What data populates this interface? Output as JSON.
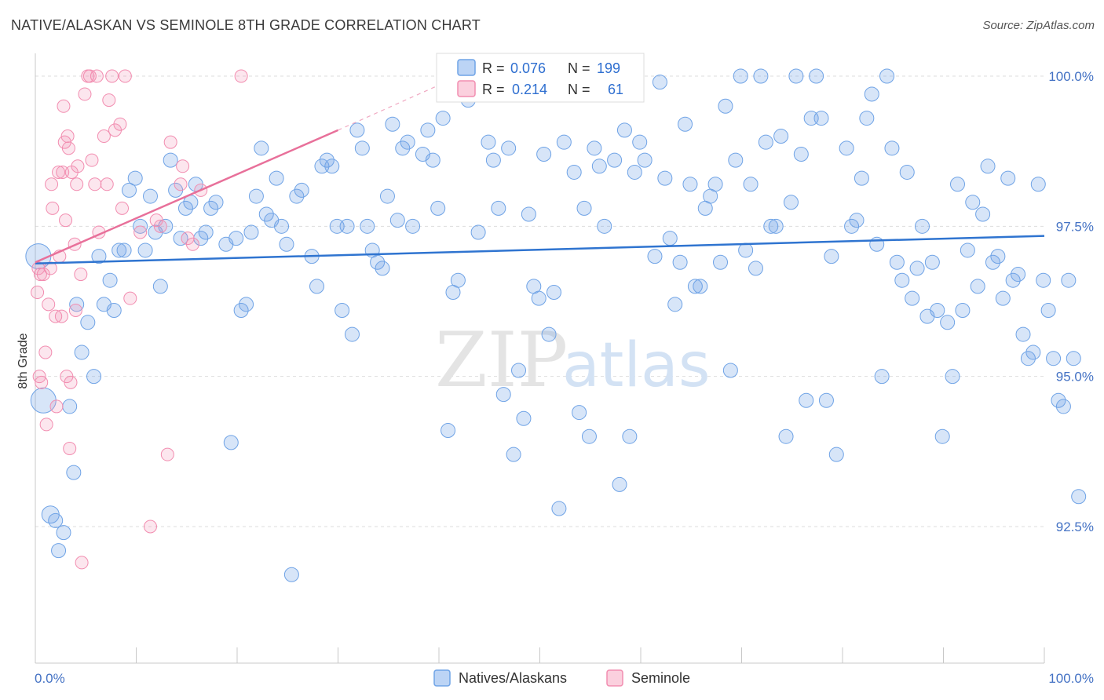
{
  "title": "NATIVE/ALASKAN VS SEMINOLE 8TH GRADE CORRELATION CHART",
  "source": "Source: ZipAtlas.com",
  "watermark": {
    "zip": "ZIP",
    "atlas": "atlas"
  },
  "stats_legend": [
    {
      "r_label": "R = ",
      "r_value": "0.076",
      "n_label": "N = ",
      "n_value": "199",
      "color": "#6fa3e6"
    },
    {
      "r_label": "R = ",
      "r_value": "0.214",
      "n_label": "N = ",
      "n_value": "61",
      "color": "#f28db0"
    }
  ],
  "chart_data": {
    "type": "scatter",
    "xlabel": "",
    "ylabel": "8th Grade",
    "xlim": [
      0,
      100
    ],
    "ylim": [
      89.0,
      100.3
    ],
    "x_tick_labels": [
      "0.0%",
      "100.0%"
    ],
    "y_ticks": [
      92.5,
      95.0,
      97.5,
      100.0
    ],
    "y_tick_labels": [
      "92.5%",
      "95.0%",
      "97.5%",
      "100.0%"
    ],
    "grid": true,
    "legend_position": "bottom-center",
    "series": [
      {
        "name": "Natives/Alaskans",
        "color": "#6fa3e6",
        "trend": {
          "x": [
            0,
            100
          ],
          "y": [
            96.88,
            97.34
          ]
        },
        "points": [
          [
            0.3,
            97.0
          ],
          [
            0.8,
            94.6
          ],
          [
            1.5,
            92.7
          ],
          [
            2.0,
            92.6
          ],
          [
            2.3,
            92.1
          ],
          [
            2.8,
            92.4
          ],
          [
            3.4,
            94.5
          ],
          [
            3.8,
            93.4
          ],
          [
            4.1,
            96.2
          ],
          [
            4.6,
            95.4
          ],
          [
            5.2,
            95.9
          ],
          [
            5.8,
            95.0
          ],
          [
            6.3,
            97.0
          ],
          [
            6.8,
            96.2
          ],
          [
            7.4,
            96.6
          ],
          [
            7.8,
            96.1
          ],
          [
            8.3,
            97.1
          ],
          [
            8.8,
            97.1
          ],
          [
            9.3,
            98.1
          ],
          [
            9.9,
            98.3
          ],
          [
            10.4,
            97.5
          ],
          [
            10.9,
            97.1
          ],
          [
            11.4,
            98.0
          ],
          [
            11.9,
            97.4
          ],
          [
            12.4,
            96.5
          ],
          [
            12.9,
            97.5
          ],
          [
            13.4,
            98.6
          ],
          [
            13.9,
            98.1
          ],
          [
            14.4,
            97.3
          ],
          [
            14.9,
            97.8
          ],
          [
            15.4,
            97.9
          ],
          [
            15.9,
            98.2
          ],
          [
            16.4,
            97.3
          ],
          [
            16.9,
            97.4
          ],
          [
            17.4,
            97.8
          ],
          [
            17.9,
            97.9
          ],
          [
            18.9,
            97.2
          ],
          [
            19.4,
            93.9
          ],
          [
            19.9,
            97.3
          ],
          [
            20.4,
            96.1
          ],
          [
            20.9,
            96.2
          ],
          [
            21.4,
            97.4
          ],
          [
            21.9,
            98.0
          ],
          [
            22.4,
            98.8
          ],
          [
            22.9,
            97.7
          ],
          [
            23.4,
            97.6
          ],
          [
            23.9,
            98.3
          ],
          [
            24.4,
            97.5
          ],
          [
            24.9,
            97.2
          ],
          [
            25.4,
            91.7
          ],
          [
            25.9,
            98.0
          ],
          [
            26.4,
            98.1
          ],
          [
            27.4,
            97.0
          ],
          [
            27.9,
            96.5
          ],
          [
            28.4,
            98.5
          ],
          [
            28.9,
            98.6
          ],
          [
            29.4,
            98.5
          ],
          [
            29.9,
            97.5
          ],
          [
            30.4,
            96.1
          ],
          [
            30.9,
            97.5
          ],
          [
            31.4,
            95.7
          ],
          [
            31.9,
            99.1
          ],
          [
            32.4,
            98.8
          ],
          [
            32.9,
            97.5
          ],
          [
            33.4,
            97.1
          ],
          [
            33.9,
            96.9
          ],
          [
            34.4,
            96.8
          ],
          [
            34.9,
            98.0
          ],
          [
            35.4,
            99.2
          ],
          [
            35.9,
            97.6
          ],
          [
            36.4,
            98.8
          ],
          [
            36.9,
            98.9
          ],
          [
            37.4,
            97.5
          ],
          [
            38.4,
            98.7
          ],
          [
            38.9,
            99.1
          ],
          [
            39.4,
            98.6
          ],
          [
            39.9,
            97.8
          ],
          [
            40.4,
            99.3
          ],
          [
            40.9,
            94.1
          ],
          [
            41.4,
            96.4
          ],
          [
            41.9,
            96.6
          ],
          [
            42.9,
            99.6
          ],
          [
            43.9,
            97.4
          ],
          [
            44.4,
            99.9
          ],
          [
            44.9,
            98.9
          ],
          [
            45.4,
            98.6
          ],
          [
            45.9,
            97.8
          ],
          [
            46.4,
            94.7
          ],
          [
            46.9,
            98.8
          ],
          [
            47.4,
            93.7
          ],
          [
            47.9,
            95.1
          ],
          [
            48.4,
            94.3
          ],
          [
            48.9,
            97.7
          ],
          [
            49.4,
            96.5
          ],
          [
            49.9,
            96.3
          ],
          [
            50.4,
            98.7
          ],
          [
            50.9,
            95.7
          ],
          [
            51.4,
            96.4
          ],
          [
            51.9,
            92.8
          ],
          [
            52.4,
            98.9
          ],
          [
            53.4,
            98.4
          ],
          [
            53.9,
            94.4
          ],
          [
            54.4,
            97.8
          ],
          [
            54.9,
            94.0
          ],
          [
            55.4,
            98.8
          ],
          [
            55.9,
            98.5
          ],
          [
            56.4,
            97.5
          ],
          [
            57.4,
            98.6
          ],
          [
            57.9,
            93.2
          ],
          [
            58.4,
            99.1
          ],
          [
            58.9,
            94.0
          ],
          [
            59.4,
            98.4
          ],
          [
            59.9,
            98.9
          ],
          [
            60.4,
            98.6
          ],
          [
            61.4,
            97.0
          ],
          [
            61.9,
            99.9
          ],
          [
            62.4,
            98.3
          ],
          [
            62.9,
            97.3
          ],
          [
            63.4,
            96.2
          ],
          [
            63.9,
            96.9
          ],
          [
            64.4,
            99.2
          ],
          [
            64.9,
            98.2
          ],
          [
            65.4,
            96.5
          ],
          [
            65.9,
            96.5
          ],
          [
            66.4,
            97.8
          ],
          [
            66.9,
            98.0
          ],
          [
            67.4,
            98.2
          ],
          [
            67.9,
            96.9
          ],
          [
            68.4,
            99.5
          ],
          [
            68.9,
            95.1
          ],
          [
            69.4,
            98.6
          ],
          [
            69.9,
            100.0
          ],
          [
            70.4,
            97.1
          ],
          [
            70.9,
            98.2
          ],
          [
            71.4,
            96.8
          ],
          [
            71.9,
            100.0
          ],
          [
            72.4,
            98.9
          ],
          [
            72.9,
            97.5
          ],
          [
            73.4,
            97.5
          ],
          [
            73.9,
            99.0
          ],
          [
            74.4,
            94.0
          ],
          [
            74.9,
            97.9
          ],
          [
            75.4,
            100.0
          ],
          [
            75.9,
            98.7
          ],
          [
            76.4,
            94.6
          ],
          [
            76.9,
            99.3
          ],
          [
            77.4,
            100.0
          ],
          [
            77.9,
            99.3
          ],
          [
            78.4,
            94.6
          ],
          [
            78.9,
            97.0
          ],
          [
            79.4,
            93.7
          ],
          [
            80.4,
            98.8
          ],
          [
            80.9,
            97.5
          ],
          [
            81.4,
            97.6
          ],
          [
            81.9,
            98.3
          ],
          [
            82.4,
            99.3
          ],
          [
            82.9,
            99.7
          ],
          [
            83.4,
            97.2
          ],
          [
            83.9,
            95.0
          ],
          [
            84.4,
            100.0
          ],
          [
            84.9,
            98.8
          ],
          [
            85.4,
            96.9
          ],
          [
            85.9,
            96.6
          ],
          [
            86.4,
            98.4
          ],
          [
            86.9,
            96.3
          ],
          [
            87.4,
            96.8
          ],
          [
            87.9,
            97.5
          ],
          [
            88.4,
            96.0
          ],
          [
            88.9,
            96.9
          ],
          [
            89.4,
            96.1
          ],
          [
            89.9,
            94.0
          ],
          [
            90.4,
            95.9
          ],
          [
            90.9,
            95.0
          ],
          [
            91.4,
            98.2
          ],
          [
            91.9,
            96.1
          ],
          [
            92.4,
            97.1
          ],
          [
            92.9,
            97.9
          ],
          [
            93.4,
            96.5
          ],
          [
            93.9,
            97.7
          ],
          [
            94.4,
            98.5
          ],
          [
            94.9,
            96.9
          ],
          [
            95.4,
            97.0
          ],
          [
            95.9,
            96.3
          ],
          [
            96.4,
            98.3
          ],
          [
            96.9,
            96.6
          ],
          [
            97.4,
            96.7
          ],
          [
            97.9,
            95.7
          ],
          [
            98.4,
            95.3
          ],
          [
            98.9,
            95.4
          ],
          [
            99.4,
            98.2
          ],
          [
            99.9,
            96.6
          ],
          [
            100.4,
            96.1
          ],
          [
            100.9,
            95.3
          ],
          [
            101.4,
            94.6
          ],
          [
            101.9,
            94.5
          ],
          [
            102.4,
            96.6
          ],
          [
            102.9,
            95.3
          ],
          [
            103.4,
            93.0
          ]
        ]
      },
      {
        "name": "Seminole",
        "color": "#f28db0",
        "trend": {
          "x": [
            0,
            30
          ],
          "y": [
            96.9,
            99.1
          ]
        },
        "trend_dashed": {
          "x": [
            30,
            42
          ],
          "y": [
            99.1,
            100.0
          ]
        },
        "points": [
          [
            0.2,
            96.4
          ],
          [
            0.3,
            96.8
          ],
          [
            0.4,
            95.0
          ],
          [
            0.5,
            96.7
          ],
          [
            0.6,
            94.9
          ],
          [
            0.8,
            96.7
          ],
          [
            1.0,
            95.4
          ],
          [
            1.1,
            94.2
          ],
          [
            1.3,
            96.2
          ],
          [
            1.5,
            96.8
          ],
          [
            1.6,
            98.2
          ],
          [
            1.7,
            97.8
          ],
          [
            2.0,
            96.0
          ],
          [
            2.1,
            94.5
          ],
          [
            2.3,
            98.4
          ],
          [
            2.4,
            97.0
          ],
          [
            2.6,
            96.0
          ],
          [
            2.7,
            98.4
          ],
          [
            2.8,
            99.5
          ],
          [
            2.9,
            98.9
          ],
          [
            3.0,
            97.6
          ],
          [
            3.1,
            95.0
          ],
          [
            3.2,
            99.0
          ],
          [
            3.3,
            98.8
          ],
          [
            3.4,
            93.8
          ],
          [
            3.5,
            94.9
          ],
          [
            3.6,
            98.4
          ],
          [
            3.9,
            97.2
          ],
          [
            4.0,
            96.1
          ],
          [
            4.1,
            98.2
          ],
          [
            4.2,
            98.5
          ],
          [
            4.5,
            96.7
          ],
          [
            4.6,
            91.9
          ],
          [
            4.9,
            99.7
          ],
          [
            5.2,
            100.0
          ],
          [
            5.4,
            100.0
          ],
          [
            5.6,
            98.6
          ],
          [
            5.9,
            98.2
          ],
          [
            6.1,
            100.0
          ],
          [
            6.3,
            97.4
          ],
          [
            6.8,
            99.0
          ],
          [
            7.1,
            98.2
          ],
          [
            7.3,
            99.6
          ],
          [
            7.6,
            100.0
          ],
          [
            7.9,
            99.1
          ],
          [
            8.4,
            99.2
          ],
          [
            8.6,
            97.8
          ],
          [
            8.9,
            100.0
          ],
          [
            9.4,
            96.3
          ],
          [
            10.4,
            97.4
          ],
          [
            11.4,
            92.5
          ],
          [
            12.0,
            97.6
          ],
          [
            12.4,
            97.5
          ],
          [
            13.1,
            93.7
          ],
          [
            13.4,
            98.9
          ],
          [
            14.4,
            98.2
          ],
          [
            14.6,
            98.5
          ],
          [
            15.1,
            97.3
          ],
          [
            15.6,
            97.2
          ],
          [
            16.4,
            98.1
          ],
          [
            20.4,
            100.0
          ]
        ]
      }
    ]
  },
  "bottom_legend": [
    {
      "label": "Natives/Alaskans",
      "color": "#6fa3e6"
    },
    {
      "label": "Seminole",
      "color": "#f28db0"
    }
  ]
}
